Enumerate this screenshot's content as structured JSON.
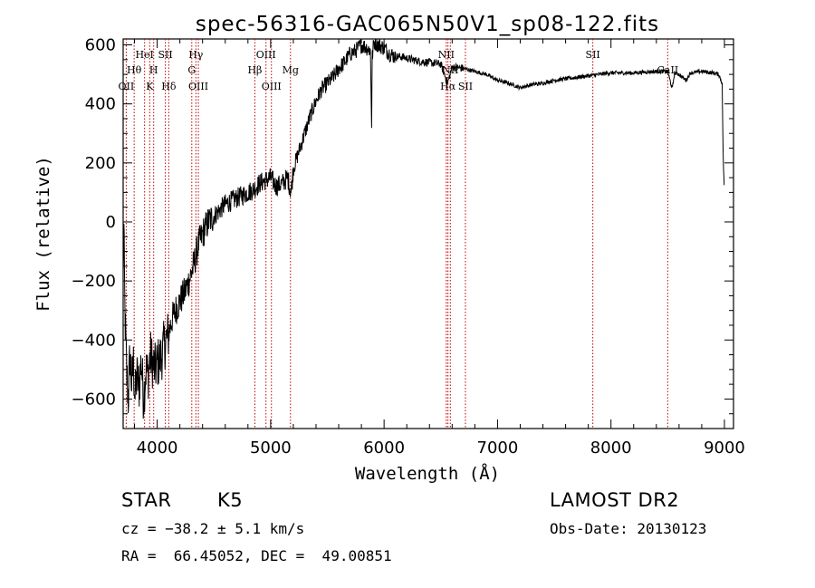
{
  "chart_data": {
    "type": "line",
    "title": "spec-56316-GAC065N50V1_sp08-122.fits",
    "xlabel": "Wavelength (Å)",
    "ylabel": "Flux (relative)",
    "xlim": [
      3700,
      9080
    ],
    "ylim": [
      -700,
      620
    ],
    "x_ticks": [
      4000,
      5000,
      6000,
      7000,
      8000,
      9000
    ],
    "y_ticks": [
      -600,
      -400,
      -200,
      0,
      200,
      400,
      600
    ],
    "line_color": "#000000",
    "marker_color": "#c00000",
    "spectrum_anchor_points": {
      "x": [
        3700,
        3705,
        3715,
        3730,
        3745,
        3760,
        3775,
        3790,
        3805,
        3820,
        3840,
        3860,
        3880,
        3900,
        3920,
        3940,
        3960,
        3980,
        4000,
        4020,
        4040,
        4060,
        4080,
        4100,
        4130,
        4160,
        4200,
        4240,
        4280,
        4320,
        4360,
        4400,
        4450,
        4500,
        4550,
        4600,
        4650,
        4700,
        4750,
        4800,
        4850,
        4900,
        4950,
        5000,
        5050,
        5100,
        5150,
        5180,
        5200,
        5250,
        5300,
        5350,
        5400,
        5450,
        5500,
        5550,
        5600,
        5650,
        5700,
        5750,
        5800,
        5850,
        5880,
        5890,
        5896,
        5910,
        5950,
        6000,
        6050,
        6100,
        6150,
        6200,
        6300,
        6400,
        6500,
        6560,
        6600,
        6700,
        6800,
        6900,
        7000,
        7100,
        7200,
        7300,
        7400,
        7500,
        7600,
        7700,
        7800,
        7900,
        8000,
        8100,
        8200,
        8300,
        8400,
        8500,
        8540,
        8560,
        8600,
        8662,
        8700,
        8800,
        8900,
        8950,
        8980,
        8990,
        9000
      ],
      "y": [
        -200,
        0,
        -300,
        -500,
        -600,
        -450,
        -550,
        -480,
        -600,
        -520,
        -560,
        -470,
        -600,
        -500,
        -520,
        -450,
        -480,
        -500,
        -480,
        -470,
        -450,
        -420,
        -400,
        -380,
        -330,
        -300,
        -270,
        -240,
        -200,
        -150,
        -80,
        -40,
        0,
        20,
        40,
        60,
        70,
        80,
        90,
        100,
        110,
        130,
        140,
        150,
        120,
        130,
        150,
        100,
        180,
        240,
        300,
        360,
        410,
        450,
        470,
        490,
        520,
        540,
        570,
        580,
        600,
        590,
        580,
        330,
        560,
        610,
        600,
        590,
        570,
        560,
        560,
        555,
        545,
        540,
        535,
        470,
        525,
        520,
        510,
        500,
        480,
        470,
        455,
        465,
        470,
        480,
        485,
        490,
        495,
        500,
        505,
        505,
        505,
        508,
        510,
        510,
        450,
        505,
        500,
        480,
        505,
        510,
        505,
        500,
        470,
        200,
        100
      ]
    },
    "line_markers": [
      {
        "label": "OII",
        "x": 3727,
        "row": 2
      },
      {
        "label": "Hθ",
        "x": 3797,
        "row": 1
      },
      {
        "label": "HeI",
        "x": 3889,
        "row": 0
      },
      {
        "label": "K",
        "x": 3934,
        "row": 2
      },
      {
        "label": "H",
        "x": 3969,
        "row": 1
      },
      {
        "label": "SII",
        "x": 4072,
        "row": 0
      },
      {
        "label": "Hδ",
        "x": 4102,
        "row": 2
      },
      {
        "label": "Hγ",
        "x": 4341,
        "row": 0
      },
      {
        "label": "G",
        "x": 4305,
        "row": 1
      },
      {
        "label": "OIII",
        "x": 4363,
        "row": 2
      },
      {
        "label": "Hβ",
        "x": 4861,
        "row": 1
      },
      {
        "label": "OIII",
        "x": 4959,
        "row": 0
      },
      {
        "label": "OIII",
        "x": 5007,
        "row": 2
      },
      {
        "label": "Mg",
        "x": 5175,
        "row": 1
      },
      {
        "label": "NII",
        "x": 6548,
        "row": 0
      },
      {
        "label": "Hα",
        "x": 6563,
        "row": 2
      },
      {
        "label": "NII",
        "x": 6584,
        "row": 1
      },
      {
        "label": "SII",
        "x": 6717,
        "row": 2
      },
      {
        "label": "SII",
        "x": 7840,
        "row": 0
      },
      {
        "label": "CaII",
        "x": 8500,
        "row": 1
      }
    ]
  },
  "footer": {
    "object_type": "STAR",
    "subclass": "K5",
    "survey": "LAMOST DR2",
    "cz": "cz = −38.2 ± 5.1 km/s",
    "obs_date": "Obs-Date: 20130123",
    "coords": "RA =  66.45052, DEC =  49.00851"
  }
}
